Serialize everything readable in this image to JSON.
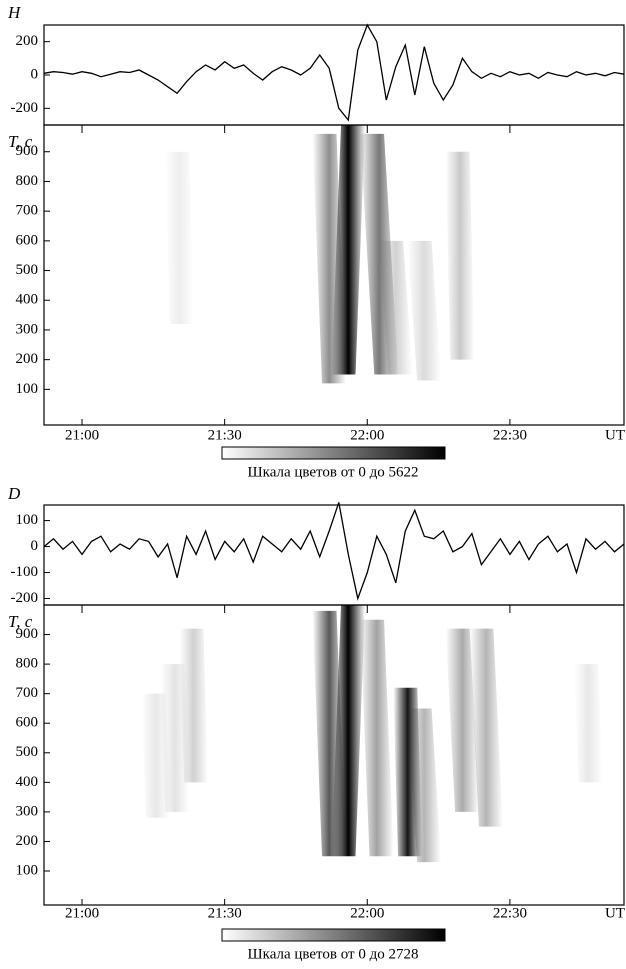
{
  "chart_data": [
    {
      "type": "line",
      "ylabel": "H",
      "color": "#000000",
      "x": [
        "20:52",
        "20:54",
        "20:56",
        "20:58",
        "21:00",
        "21:02",
        "21:04",
        "21:06",
        "21:08",
        "21:10",
        "21:12",
        "21:14",
        "21:16",
        "21:18",
        "21:20",
        "21:22",
        "21:24",
        "21:26",
        "21:28",
        "21:30",
        "21:32",
        "21:34",
        "21:36",
        "21:38",
        "21:40",
        "21:42",
        "21:44",
        "21:46",
        "21:48",
        "21:50",
        "21:52",
        "21:54",
        "21:56",
        "21:58",
        "22:00",
        "22:02",
        "22:04",
        "22:06",
        "22:08",
        "22:10",
        "22:12",
        "22:14",
        "22:16",
        "22:18",
        "22:20",
        "22:22",
        "22:24",
        "22:26",
        "22:28",
        "22:30",
        "22:32",
        "22:34",
        "22:36",
        "22:38",
        "22:40",
        "22:42",
        "22:44",
        "22:46",
        "22:48",
        "22:50",
        "22:52",
        "22:54"
      ],
      "values": [
        10,
        20,
        15,
        5,
        20,
        10,
        -10,
        5,
        20,
        15,
        30,
        0,
        -30,
        -70,
        -110,
        -40,
        20,
        60,
        30,
        80,
        40,
        60,
        10,
        -30,
        20,
        50,
        30,
        0,
        40,
        120,
        40,
        -200,
        -270,
        150,
        300,
        200,
        -150,
        50,
        180,
        -120,
        170,
        -50,
        -150,
        -60,
        100,
        20,
        -20,
        10,
        -10,
        20,
        0,
        10,
        -20,
        15,
        0,
        -10,
        20,
        0,
        10,
        -5,
        15,
        5
      ],
      "xlim": [
        "20:52",
        "22:54"
      ],
      "ylim": [
        -300,
        300
      ],
      "yticks": [
        200,
        0,
        -200
      ]
    },
    {
      "type": "heatmap",
      "ylabel": "T, c",
      "xlabel": "UT",
      "color": "#000000",
      "xlim": [
        "20:52",
        "22:54"
      ],
      "xticks": [
        "21:00",
        "21:30",
        "22:00",
        "22:30"
      ],
      "ylim": [
        -20,
        990
      ],
      "yticks": [
        100,
        200,
        300,
        400,
        500,
        600,
        700,
        800,
        900
      ],
      "zlim": [
        0,
        5622
      ],
      "colorbar_label": "Шкала цветов от 0 до 5622",
      "stripes": [
        {
          "x": [
            "21:21",
            "21:20"
          ],
          "y": [
            320,
            900
          ],
          "value": 400
        },
        {
          "x": [
            "21:53",
            "21:51"
          ],
          "y": [
            120,
            960
          ],
          "value": 2500
        },
        {
          "x": [
            "21:55",
            "21:57"
          ],
          "y": [
            150,
            990
          ],
          "value": 5622
        },
        {
          "x": [
            "22:04",
            "22:01"
          ],
          "y": [
            150,
            960
          ],
          "value": 3000
        },
        {
          "x": [
            "22:07",
            "22:05"
          ],
          "y": [
            150,
            600
          ],
          "value": 1000
        },
        {
          "x": [
            "22:13",
            "22:11"
          ],
          "y": [
            130,
            600
          ],
          "value": 800
        },
        {
          "x": [
            "22:20",
            "22:19"
          ],
          "y": [
            200,
            900
          ],
          "value": 1200
        }
      ]
    },
    {
      "type": "line",
      "ylabel": "D",
      "color": "#000000",
      "x": [
        "20:52",
        "20:54",
        "20:56",
        "20:58",
        "21:00",
        "21:02",
        "21:04",
        "21:06",
        "21:08",
        "21:10",
        "21:12",
        "21:14",
        "21:16",
        "21:18",
        "21:20",
        "21:22",
        "21:24",
        "21:26",
        "21:28",
        "21:30",
        "21:32",
        "21:34",
        "21:36",
        "21:38",
        "21:40",
        "21:42",
        "21:44",
        "21:46",
        "21:48",
        "21:50",
        "21:52",
        "21:54",
        "21:56",
        "21:58",
        "22:00",
        "22:02",
        "22:04",
        "22:06",
        "22:08",
        "22:10",
        "22:12",
        "22:14",
        "22:16",
        "22:18",
        "22:20",
        "22:22",
        "22:24",
        "22:26",
        "22:28",
        "22:30",
        "22:32",
        "22:34",
        "22:36",
        "22:38",
        "22:40",
        "22:42",
        "22:44",
        "22:46",
        "22:48",
        "22:50",
        "22:52",
        "22:54"
      ],
      "values": [
        0,
        30,
        -10,
        20,
        -30,
        20,
        40,
        -20,
        10,
        -10,
        30,
        20,
        -40,
        10,
        -120,
        40,
        -30,
        60,
        -50,
        20,
        -20,
        30,
        -60,
        40,
        10,
        -20,
        30,
        -10,
        60,
        -40,
        60,
        170,
        -30,
        -200,
        -100,
        40,
        -30,
        -140,
        60,
        140,
        40,
        30,
        60,
        -20,
        0,
        50,
        -70,
        -20,
        30,
        -30,
        20,
        -50,
        10,
        40,
        -20,
        10,
        -100,
        30,
        -10,
        20,
        -20,
        10
      ],
      "xlim": [
        "20:52",
        "22:54"
      ],
      "ylim": [
        -225,
        160
      ],
      "yticks": [
        100,
        0,
        -100,
        -200
      ]
    },
    {
      "type": "heatmap",
      "ylabel": "T, c",
      "xlabel": "UT",
      "color": "#000000",
      "xlim": [
        "20:52",
        "22:54"
      ],
      "xticks": [
        "21:00",
        "21:30",
        "22:00",
        "22:30"
      ],
      "ylim": [
        -15,
        1000
      ],
      "yticks": [
        100,
        200,
        300,
        400,
        500,
        600,
        700,
        800,
        900
      ],
      "zlim": [
        0,
        2728
      ],
      "colorbar_label": "Шкала цветов от 0 до 2728",
      "stripes": [
        {
          "x": [
            "21:16",
            "21:15"
          ],
          "y": [
            280,
            700
          ],
          "value": 250
        },
        {
          "x": [
            "21:20",
            "21:19"
          ],
          "y": [
            300,
            800
          ],
          "value": 300
        },
        {
          "x": [
            "21:24",
            "21:23"
          ],
          "y": [
            400,
            920
          ],
          "value": 500
        },
        {
          "x": [
            "21:53",
            "21:51"
          ],
          "y": [
            150,
            980
          ],
          "value": 1800
        },
        {
          "x": [
            "21:55",
            "21:57"
          ],
          "y": [
            150,
            1000
          ],
          "value": 2728
        },
        {
          "x": [
            "22:03",
            "22:01"
          ],
          "y": [
            150,
            950
          ],
          "value": 1000
        },
        {
          "x": [
            "22:09",
            "22:08"
          ],
          "y": [
            150,
            720
          ],
          "value": 2500
        },
        {
          "x": [
            "22:13",
            "22:11"
          ],
          "y": [
            130,
            650
          ],
          "value": 800
        },
        {
          "x": [
            "22:21",
            "22:19"
          ],
          "y": [
            300,
            920
          ],
          "value": 900
        },
        {
          "x": [
            "22:26",
            "22:24"
          ],
          "y": [
            250,
            920
          ],
          "value": 800
        },
        {
          "x": [
            "22:47",
            "22:46"
          ],
          "y": [
            400,
            800
          ],
          "value": 250
        }
      ]
    }
  ]
}
